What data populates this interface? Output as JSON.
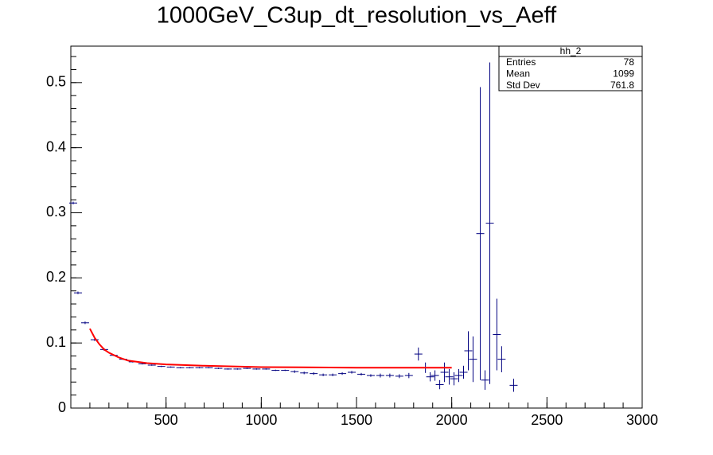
{
  "chart_data": {
    "type": "errorbar",
    "title": "1000GeV_C3up_dt_resolution_vs_Aeff",
    "xlim": [
      0,
      3000
    ],
    "ylim": [
      0,
      0.556
    ],
    "xticks": [
      500,
      1000,
      1500,
      2000,
      2500,
      3000
    ],
    "yticks": [
      0,
      0.1,
      0.2,
      0.3,
      0.4,
      0.5
    ],
    "series": [
      {
        "color": "#000080",
        "x": [
          12.5,
          37.5,
          75,
          125,
          175,
          225,
          275,
          325,
          375,
          425,
          475,
          525,
          575,
          625,
          675,
          725,
          775,
          825,
          875,
          925,
          975,
          1025,
          1075,
          1125,
          1175,
          1225,
          1275,
          1325,
          1375,
          1425,
          1475,
          1525,
          1575,
          1625,
          1675,
          1725,
          1775,
          1825,
          1862,
          1887,
          1912,
          1937,
          1962,
          1987,
          2012,
          2037,
          2062,
          2087,
          2112,
          2150,
          2175,
          2200,
          2237,
          2262,
          2325
        ],
        "values": [
          0.315,
          0.177,
          0.131,
          0.105,
          0.09,
          0.081,
          0.075,
          0.071,
          0.068,
          0.066,
          0.064,
          0.063,
          0.062,
          0.062,
          0.062,
          0.062,
          0.061,
          0.06,
          0.06,
          0.061,
          0.06,
          0.06,
          0.058,
          0.058,
          0.056,
          0.054,
          0.053,
          0.051,
          0.051,
          0.053,
          0.055,
          0.052,
          0.05,
          0.05,
          0.05,
          0.049,
          0.05,
          0.083,
          0.062,
          0.048,
          0.05,
          0.036,
          0.055,
          0.048,
          0.045,
          0.05,
          0.055,
          0.088,
          0.075,
          0.268,
          0.043,
          0.284,
          0.113,
          0.075,
          0.035
        ],
        "errors": [
          0.002,
          0.002,
          0.002,
          0.002,
          0.002,
          0.001,
          0.001,
          0.001,
          0.001,
          0.001,
          0.001,
          0.001,
          0.001,
          0.001,
          0.001,
          0.001,
          0.001,
          0.001,
          0.001,
          0.001,
          0.001,
          0.001,
          0.001,
          0.001,
          0.002,
          0.002,
          0.002,
          0.002,
          0.002,
          0.002,
          0.002,
          0.002,
          0.002,
          0.003,
          0.003,
          0.003,
          0.004,
          0.01,
          0.008,
          0.007,
          0.008,
          0.007,
          0.015,
          0.012,
          0.01,
          0.01,
          0.01,
          0.03,
          0.035,
          0.225,
          0.015,
          0.247,
          0.055,
          0.02,
          0.01
        ]
      }
    ],
    "fit": {
      "color": "#ff0000",
      "x": [
        100,
        125,
        150,
        175,
        200,
        250,
        300,
        400,
        500,
        700,
        1000,
        1500,
        2000
      ],
      "values": [
        0.122,
        0.108,
        0.098,
        0.09,
        0.085,
        0.078,
        0.073,
        0.069,
        0.067,
        0.065,
        0.063,
        0.062,
        0.062
      ]
    },
    "stats": {
      "title": "hh_2",
      "rows": [
        [
          "Entries",
          78
        ],
        [
          "Mean",
          1099
        ],
        [
          "Std Dev",
          761.8
        ]
      ]
    }
  }
}
